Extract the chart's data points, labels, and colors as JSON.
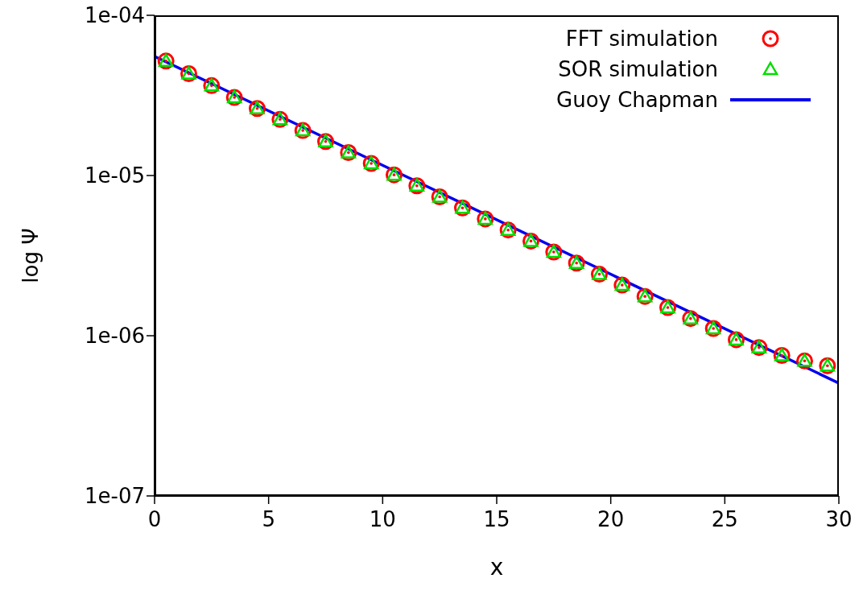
{
  "chart_data": {
    "type": "scatter",
    "xlabel": "x",
    "ylabel": "log Ψ",
    "log": "y",
    "xlim": [
      0,
      30
    ],
    "xticks": [
      0,
      5,
      10,
      15,
      20,
      25,
      30
    ],
    "ylim": [
      1e-07,
      0.0001
    ],
    "yticks": [
      {
        "value": 1e-07,
        "label": "1e-07"
      },
      {
        "value": 1e-06,
        "label": "1e-06"
      },
      {
        "value": 1e-05,
        "label": "1e-05"
      },
      {
        "value": 0.0001,
        "label": "1e-04"
      }
    ],
    "legend": "top right",
    "x": [
      0.5,
      1.5,
      2.5,
      3.5,
      4.5,
      5.5,
      6.5,
      7.5,
      8.5,
      9.5,
      10.5,
      11.5,
      12.5,
      13.5,
      14.5,
      15.5,
      16.5,
      17.5,
      18.5,
      19.5,
      20.5,
      21.5,
      22.5,
      23.5,
      24.5,
      25.5,
      26.5,
      27.5,
      28.5,
      29.5
    ],
    "series": [
      {
        "name": "FFT simulation",
        "marker": "circle",
        "color": "#ff0000",
        "values": [
          5.18e-05,
          4.32e-05,
          3.64e-05,
          3.07e-05,
          2.62e-05,
          2.24e-05,
          1.91e-05,
          1.63e-05,
          1.39e-05,
          1.19e-05,
          1.01e-05,
          8.63e-06,
          7.36e-06,
          6.28e-06,
          5.36e-06,
          4.57e-06,
          3.9e-06,
          3.33e-06,
          2.84e-06,
          2.42e-06,
          2.07e-06,
          1.76e-06,
          1.5e-06,
          1.28e-06,
          1.11e-06,
          9.45e-07,
          8.44e-07,
          7.53e-07,
          6.96e-07,
          6.5e-07
        ]
      },
      {
        "name": "SOR simulation",
        "marker": "triangle",
        "color": "#00dd00",
        "values": [
          5.18e-05,
          4.32e-05,
          3.64e-05,
          3.07e-05,
          2.62e-05,
          2.24e-05,
          1.91e-05,
          1.63e-05,
          1.39e-05,
          1.19e-05,
          1.01e-05,
          8.63e-06,
          7.36e-06,
          6.28e-06,
          5.36e-06,
          4.57e-06,
          3.9e-06,
          3.33e-06,
          2.84e-06,
          2.42e-06,
          2.07e-06,
          1.76e-06,
          1.5e-06,
          1.28e-06,
          1.11e-06,
          9.45e-07,
          8.44e-07,
          7.53e-07,
          6.96e-07,
          6.5e-07
        ]
      },
      {
        "name": "Guoy Chapman",
        "type": "line",
        "marker": "none",
        "color": "#0000ee",
        "x": [
          0,
          30
        ],
        "values": [
          5.54e-05,
          5.06e-07
        ]
      }
    ]
  }
}
